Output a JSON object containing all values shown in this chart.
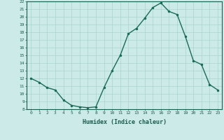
{
  "x": [
    0,
    1,
    2,
    3,
    4,
    5,
    6,
    7,
    8,
    9,
    10,
    11,
    12,
    13,
    14,
    15,
    16,
    17,
    18,
    19,
    20,
    21,
    22,
    23
  ],
  "y": [
    12.0,
    11.5,
    10.8,
    10.5,
    9.2,
    8.5,
    8.3,
    8.2,
    8.3,
    10.8,
    13.0,
    15.0,
    17.8,
    18.5,
    19.8,
    21.2,
    21.8,
    20.7,
    20.3,
    17.5,
    14.3,
    13.8,
    11.2,
    10.5
  ],
  "xlabel": "Humidex (Indice chaleur)",
  "ylim": [
    8,
    22
  ],
  "xlim": [
    -0.5,
    23.5
  ],
  "yticks": [
    8,
    9,
    10,
    11,
    12,
    13,
    14,
    15,
    16,
    17,
    18,
    19,
    20,
    21,
    22
  ],
  "xticks": [
    0,
    1,
    2,
    3,
    4,
    5,
    6,
    7,
    8,
    9,
    10,
    11,
    12,
    13,
    14,
    15,
    16,
    17,
    18,
    19,
    20,
    21,
    22,
    23
  ],
  "line_color": "#1a6b5a",
  "marker_color": "#1a6b5a",
  "bg_color": "#cceae7",
  "grid_color": "#aad4d0",
  "text_color": "#1a5c4e",
  "axis_color": "#1a5c4e",
  "tick_fontsize": 4.5,
  "xlabel_fontsize": 6.0,
  "linewidth": 1.0,
  "markersize": 3
}
